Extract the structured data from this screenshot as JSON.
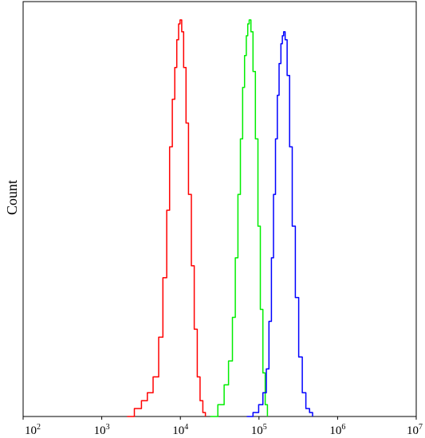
{
  "chart_data": {
    "type": "line",
    "title": "",
    "xlabel": "",
    "ylabel": "Count",
    "x_scale": "log",
    "xlim": [
      100,
      10000000
    ],
    "ylim": [
      0,
      1
    ],
    "grid": false,
    "legend": "none",
    "x_ticks": [
      {
        "base": "10",
        "exp": "2",
        "value": 100
      },
      {
        "base": "10",
        "exp": "3",
        "value": 1000
      },
      {
        "base": "10",
        "exp": "4",
        "value": 10000
      },
      {
        "base": "10",
        "exp": "5",
        "value": 100000
      },
      {
        "base": "10",
        "exp": "6",
        "value": 1000000
      },
      {
        "base": "10",
        "exp": "7",
        "value": 10000000
      }
    ],
    "series": [
      {
        "color": "#ff0000",
        "x": [
          2100,
          2600,
          3200,
          3800,
          4500,
          5300,
          6000,
          6700,
          7300,
          7900,
          8500,
          9000,
          9500,
          9900,
          10400,
          11000,
          11800,
          12700,
          13800,
          15000,
          16400,
          17800,
          19300,
          20800
        ],
        "y": [
          0.0,
          0.02,
          0.04,
          0.06,
          0.1,
          0.2,
          0.35,
          0.52,
          0.68,
          0.8,
          0.88,
          0.95,
          0.99,
          1.0,
          0.97,
          0.88,
          0.74,
          0.56,
          0.38,
          0.22,
          0.1,
          0.04,
          0.01,
          0.0
        ]
      },
      {
        "color": "#00ee00",
        "x": [
          24000,
          30000,
          36000,
          41000,
          46000,
          50000,
          54000,
          58000,
          62000,
          65500,
          69000,
          72000,
          75000,
          79000,
          84000,
          90000,
          97000,
          104000,
          112000,
          120000,
          128000
        ],
        "y": [
          0.0,
          0.03,
          0.08,
          0.14,
          0.25,
          0.4,
          0.56,
          0.7,
          0.83,
          0.91,
          0.96,
          0.99,
          1.0,
          0.97,
          0.87,
          0.7,
          0.48,
          0.27,
          0.11,
          0.03,
          0.0
        ]
      },
      {
        "color": "#0000ff",
        "x": [
          70000,
          84000,
          99000,
          112000,
          124000,
          134000,
          144000,
          153000,
          162000,
          171000,
          180000,
          190000,
          198000,
          206000,
          215000,
          228000,
          245000,
          265000,
          290000,
          320000,
          355000,
          395000,
          440000,
          480000
        ],
        "y": [
          0.0,
          0.01,
          0.03,
          0.06,
          0.12,
          0.24,
          0.4,
          0.56,
          0.7,
          0.81,
          0.89,
          0.94,
          0.96,
          0.97,
          0.95,
          0.86,
          0.68,
          0.48,
          0.3,
          0.15,
          0.06,
          0.02,
          0.01,
          0.0
        ]
      }
    ]
  }
}
